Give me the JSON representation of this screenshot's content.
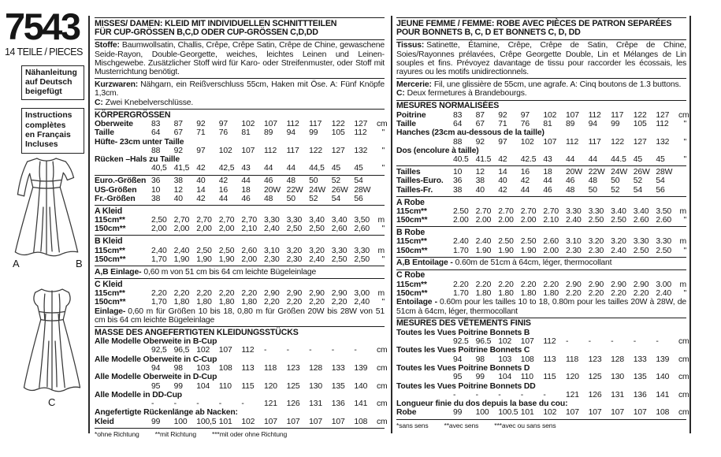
{
  "left": {
    "pattern_number": "7543",
    "pieces_label": "14 TEILE / PIECES",
    "box_german": "Nähanleitung\nauf Deutsch\nbeigefügt",
    "box_french": "Instructions\ncomplètes\nen Français\nIncluses",
    "view_a": "A",
    "view_b": "B",
    "view_c": "C"
  },
  "german": {
    "title1": "MISSES/ DAMEN: KLEID MIT INDIVIDUELLEN SCHNITTTEILEN",
    "title2": "FÜR CUP-GRÖSSEN B,C,D ODER CUP-GRÖSSEN C,D,DD",
    "fabrics": {
      "label": "Stoffe:",
      "text": "Baumwollsatin, Challis, Crêpe, Crêpe Satin, Crêpe de Chine, gewaschene Seide-Rayon, Double-Georgette, weiches, leichtes Leinen und Leinen-Mischgewebe. Zusätzlicher Stoff wird für Karo- oder Streifenmuster, oder Stoff mit Musterrichtung benötigt."
    },
    "notions": [
      {
        "label": "Kurzwaren:",
        "text": "Nähgarn, ein Reißverschluss 55cm, Haken mit Öse. A: Fünf Knöpfe 1,3cm."
      },
      {
        "label": "C:",
        "text": "Zwei Knebelverschlüsse."
      }
    ],
    "body": {
      "title": "KÖRPERGRÖSSEN",
      "rows": [
        {
          "label": "Oberweite",
          "values": [
            "83",
            "87",
            "92",
            "97",
            "102",
            "107",
            "112",
            "117",
            "122",
            "127"
          ],
          "unit": "cm"
        },
        {
          "label": "Taille",
          "values": [
            "64",
            "67",
            "71",
            "76",
            "81",
            "89",
            "94",
            "99",
            "105",
            "112"
          ],
          "unit": "\""
        },
        {
          "label": "Hüfte- 23cm unter Taille",
          "wrap": true,
          "values": [
            "88",
            "92",
            "97",
            "102",
            "107",
            "112",
            "117",
            "122",
            "127",
            "132"
          ],
          "unit": "\""
        },
        {
          "label": "Rücken –Hals zu Taille",
          "wrap": true,
          "values": [
            "40,5",
            "41,5",
            "42",
            "42,5",
            "43",
            "44",
            "44",
            "44,5",
            "45",
            "45"
          ],
          "unit": "\""
        }
      ]
    },
    "sizes": [
      {
        "label": "Euro.-Größen",
        "values": [
          "36",
          "38",
          "40",
          "42",
          "44",
          "46",
          "48",
          "50",
          "52",
          "54"
        ],
        "unit": ""
      },
      {
        "label": "US-Größen",
        "values": [
          "10",
          "12",
          "14",
          "16",
          "18",
          "20W",
          "22W",
          "24W",
          "26W",
          "28W"
        ],
        "unit": ""
      },
      {
        "label": "Fr.-Größen",
        "values": [
          "38",
          "40",
          "42",
          "44",
          "46",
          "48",
          "50",
          "52",
          "54",
          "56"
        ],
        "unit": ""
      }
    ],
    "garment_a": {
      "title": "A Kleid",
      "rows": [
        {
          "label": "115cm**",
          "values": [
            "2,50",
            "2,70",
            "2,70",
            "2,70",
            "2,70",
            "3,30",
            "3,30",
            "3,40",
            "3,40",
            "3,50"
          ],
          "unit": "m"
        },
        {
          "label": "150cm**",
          "values": [
            "2,00",
            "2,00",
            "2,00",
            "2,00",
            "2,10",
            "2,40",
            "2,50",
            "2,50",
            "2,60",
            "2,60"
          ],
          "unit": "\""
        }
      ]
    },
    "garment_b": {
      "title": "B Kleid",
      "rows": [
        {
          "label": "115cm**",
          "values": [
            "2,40",
            "2,40",
            "2,50",
            "2,50",
            "2,60",
            "3,10",
            "3,20",
            "3,20",
            "3,30",
            "3,30"
          ],
          "unit": "m"
        },
        {
          "label": "150cm**",
          "values": [
            "1,70",
            "1,90",
            "1,90",
            "1,90",
            "2,00",
            "2,30",
            "2,30",
            "2,40",
            "2,50",
            "2,50"
          ],
          "unit": "\""
        }
      ]
    },
    "interfacing_ab": {
      "label": "A,B Einlage-",
      "text": "0,60 m von 51 cm bis 64 cm leichte Bügeleinlage"
    },
    "garment_c": {
      "title": "C Kleid",
      "rows": [
        {
          "label": "115cm**",
          "values": [
            "2,20",
            "2,20",
            "2,20",
            "2,20",
            "2,20",
            "2,90",
            "2,90",
            "2,90",
            "2,90",
            "3,00"
          ],
          "unit": "m"
        },
        {
          "label": "150cm**",
          "values": [
            "1,70",
            "1,80",
            "1,80",
            "1,80",
            "1,80",
            "2,20",
            "2,20",
            "2,20",
            "2,20",
            "2,40"
          ],
          "unit": "\""
        }
      ],
      "note": {
        "label": "Einlage-",
        "text": "0,60 m für Größen 10 bis 18, 0,80 m für Größen 20W bis 28W von 51 cm bis 64 cm leichte Bügeleinlage"
      }
    },
    "finished": {
      "title": "MASSE DES ANGEFERTIGTEN KLEIDUNGSSTÜCKS",
      "rows": [
        {
          "label": "Alle Modelle Oberweite in B-Cup",
          "wrap": true,
          "values": [
            "92,5",
            "96,5",
            "102",
            "107",
            "112",
            "-",
            "-",
            "-",
            "-",
            "-"
          ],
          "unit": "cm"
        },
        {
          "label": "Alle Modelle Oberweite in C-Cup",
          "wrap": true,
          "values": [
            "94",
            "98",
            "103",
            "108",
            "113",
            "118",
            "123",
            "128",
            "133",
            "139"
          ],
          "unit": "cm"
        },
        {
          "label": "Alle Modelle Oberweite in D-Cup",
          "wrap": true,
          "values": [
            "95",
            "99",
            "104",
            "110",
            "115",
            "120",
            "125",
            "130",
            "135",
            "140"
          ],
          "unit": "cm"
        },
        {
          "label": "Alle Modelle in DD-Cup",
          "wrap": true,
          "values": [
            "-",
            "-",
            "-",
            "-",
            "-",
            "121",
            "126",
            "131",
            "136",
            "141"
          ],
          "unit": "cm"
        },
        {
          "label": "Angefertigte Rückenlänge ab Nacken:",
          "wrap": true,
          "sublabel": "Kleid",
          "values": [
            "99",
            "100",
            "100,5",
            "101",
            "102",
            "107",
            "107",
            "107",
            "107",
            "108"
          ],
          "unit": "cm"
        }
      ]
    },
    "footnotes": [
      "*ohne Richtung",
      "**mit Richtung",
      "***mit oder ohne Richtung"
    ]
  },
  "french": {
    "title1": "JEUNE FEMME / FEMME: ROBE AVEC PIÈCES DE PATRON SEPARÉES",
    "title2": "POUR BONNETS B, C, D ET BONNETS C, D, DD",
    "fabrics": {
      "label": "Tissus:",
      "text": "Satinette, Étamine, Crêpe, Crêpe de Satin, Crêpe de Chine, Soies/Rayonnes prélavées, Crêpe Georgette Double, Lin et Mélanges de Lin souples et fins. Prévoyez davantage de tissu pour raccorder les écossais, les rayures ou les motifs unidirectionnels."
    },
    "notions": [
      {
        "label": "Mercerie:",
        "text": "Fil, une glissière de 55cm, une agrafe. A: Cinq boutons de 1.3 buttons."
      },
      {
        "label": "C:",
        "text": "Deux fermetures à Brandebourgs."
      }
    ],
    "body": {
      "title": "MESURES NORMALISÉES",
      "rows": [
        {
          "label": "Poitrine",
          "values": [
            "83",
            "87",
            "92",
            "97",
            "102",
            "107",
            "112",
            "117",
            "122",
            "127"
          ],
          "unit": "cm"
        },
        {
          "label": "Taille",
          "values": [
            "64",
            "67",
            "71",
            "76",
            "81",
            "89",
            "94",
            "99",
            "105",
            "112"
          ],
          "unit": "\""
        },
        {
          "label": "Hanches (23cm au-dessous de la taille)",
          "wrap": true,
          "values": [
            "88",
            "92",
            "97",
            "102",
            "107",
            "112",
            "117",
            "122",
            "127",
            "132"
          ],
          "unit": "\""
        },
        {
          "label": "Dos (encolure à taille)",
          "wrap": true,
          "values": [
            "40.5",
            "41.5",
            "42",
            "42.5",
            "43",
            "44",
            "44",
            "44.5",
            "45",
            "45"
          ],
          "unit": "\""
        }
      ]
    },
    "sizes": [
      {
        "label": "Tailles",
        "values": [
          "10",
          "12",
          "14",
          "16",
          "18",
          "20W",
          "22W",
          "24W",
          "26W",
          "28W"
        ],
        "unit": ""
      },
      {
        "label": "Tailles-Euro.",
        "values": [
          "36",
          "38",
          "40",
          "42",
          "44",
          "46",
          "48",
          "50",
          "52",
          "54"
        ],
        "unit": ""
      },
      {
        "label": "Tailles-Fr.",
        "values": [
          "38",
          "40",
          "42",
          "44",
          "46",
          "48",
          "50",
          "52",
          "54",
          "56"
        ],
        "unit": ""
      }
    ],
    "garment_a": {
      "title": "A Robe",
      "rows": [
        {
          "label": "115cm**",
          "values": [
            "2.50",
            "2.70",
            "2.70",
            "2.70",
            "2.70",
            "3.30",
            "3.30",
            "3.40",
            "3.40",
            "3.50"
          ],
          "unit": "m"
        },
        {
          "label": "150cm**",
          "values": [
            "2.00",
            "2.00",
            "2.00",
            "2.00",
            "2.10",
            "2.40",
            "2.50",
            "2.50",
            "2.60",
            "2.60"
          ],
          "unit": "\""
        }
      ]
    },
    "garment_b": {
      "title": "B Robe",
      "rows": [
        {
          "label": "115cm**",
          "values": [
            "2.40",
            "2.40",
            "2.50",
            "2.50",
            "2.60",
            "3.10",
            "3.20",
            "3.20",
            "3.30",
            "3.30"
          ],
          "unit": "m"
        },
        {
          "label": "150cm**",
          "values": [
            "1.70",
            "1.90",
            "1.90",
            "1.90",
            "2.00",
            "2.30",
            "2.30",
            "2.40",
            "2.50",
            "2.50"
          ],
          "unit": "\""
        }
      ]
    },
    "interfacing_ab": {
      "label": "A,B Entoilage -",
      "text": "0.60m de 51cm à 64cm, léger, thermocollant"
    },
    "garment_c": {
      "title": "C Robe",
      "rows": [
        {
          "label": "115cm**",
          "values": [
            "2.20",
            "2.20",
            "2.20",
            "2.20",
            "2.20",
            "2.90",
            "2.90",
            "2.90",
            "2.90",
            "3.00"
          ],
          "unit": "m"
        },
        {
          "label": "150cm**",
          "values": [
            "1.70",
            "1.80",
            "1.80",
            "1.80",
            "1.80",
            "2.20",
            "2.20",
            "2.20",
            "2.20",
            "2.40"
          ],
          "unit": "\""
        }
      ],
      "note": {
        "label": "Entoilage -",
        "text": "0.60m pour les tailles 10 to 18, 0.80m pour les tailles 20W à 28W, de 51cm à 64cm, léger, thermocollant"
      }
    },
    "finished": {
      "title": "MESURES DES VÊTEMENTS FINIS",
      "rows": [
        {
          "label": "Toutes les Vues Poitrine Bonnets B",
          "wrap": true,
          "values": [
            "92.5",
            "96.5",
            "102",
            "107",
            "112",
            "-",
            "-",
            "-",
            "-",
            "-"
          ],
          "unit": "cm"
        },
        {
          "label": "Toutes les Vues Poitrine Bonnets C",
          "wrap": true,
          "values": [
            "94",
            "98",
            "103",
            "108",
            "113",
            "118",
            "123",
            "128",
            "133",
            "139"
          ],
          "unit": "cm"
        },
        {
          "label": "Toutes les Vues Poitrine Bonnets D",
          "wrap": true,
          "values": [
            "95",
            "99",
            "104",
            "110",
            "115",
            "120",
            "125",
            "130",
            "135",
            "140"
          ],
          "unit": "cm"
        },
        {
          "label": "Toutes les Vues Poitrine Bonnets DD",
          "wrap": true,
          "values": [
            "-",
            "-",
            "-",
            "-",
            "-",
            "121",
            "126",
            "131",
            "136",
            "141"
          ],
          "unit": "cm"
        },
        {
          "label": "Longueur finie du dos depuis la base du cou:",
          "wrap": true,
          "sublabel": "Robe",
          "values": [
            "99",
            "100",
            "100.5",
            "101",
            "102",
            "107",
            "107",
            "107",
            "107",
            "108"
          ],
          "unit": "cm"
        }
      ]
    },
    "footnotes": [
      "*sans sens",
      "**avec sens",
      "***avec ou sans sens"
    ]
  }
}
